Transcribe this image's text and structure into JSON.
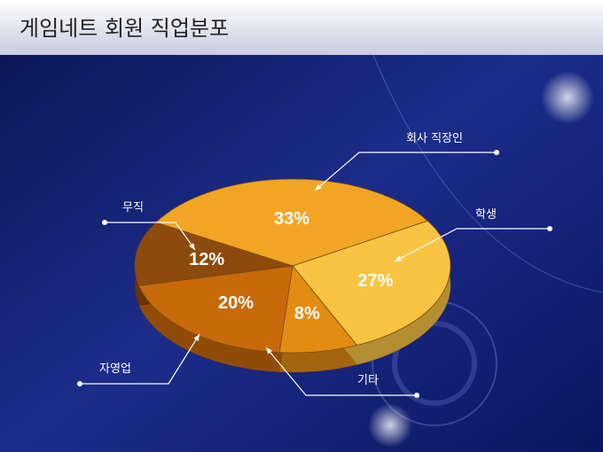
{
  "chart_data": {
    "type": "pie",
    "title": "게임네트 회원 직업분포",
    "categories": [
      "회사 직장인",
      "학생",
      "기타",
      "자영업",
      "무직"
    ],
    "values": [
      33,
      27,
      8,
      20,
      12
    ],
    "value_labels": [
      "33%",
      "27%",
      "8%",
      "20%",
      "12%"
    ],
    "colors": [
      "#f2a524",
      "#f9c441",
      "#e38c12",
      "#c8690a",
      "#8c4a0c"
    ]
  }
}
